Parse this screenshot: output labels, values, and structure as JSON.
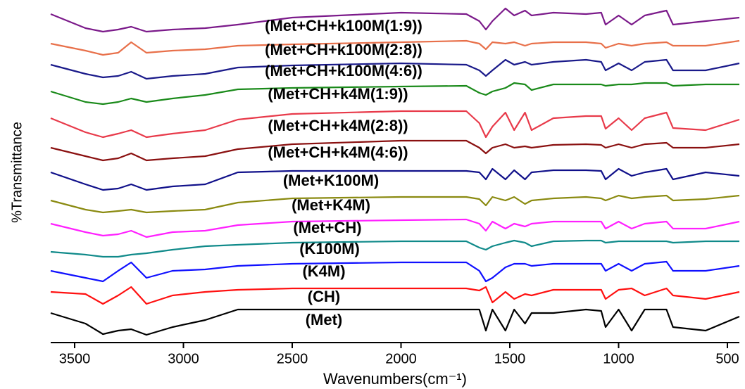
{
  "chart_data": {
    "type": "line",
    "x_label": "Wavenumbers(cm⁻¹)",
    "y_label": "%Transmittance",
    "xlim": [
      3610,
      445
    ],
    "ylim": [
      0,
      97.4
    ],
    "xticks": [
      3500,
      3000,
      2500,
      2000,
      1500,
      1000,
      500
    ],
    "x": [
      3610,
      3450,
      3370,
      3300,
      3240,
      3170,
      3050,
      2900,
      2750,
      2500,
      2000,
      1700,
      1640,
      1610,
      1580,
      1520,
      1480,
      1430,
      1400,
      1300,
      1150,
      1080,
      1060,
      1000,
      940,
      880,
      780,
      750,
      600,
      445
    ],
    "series": [
      {
        "name": "(Met+CH+k100M(1:9))",
        "color": "#7b1a8a",
        "values": [
          93.4,
          89.4,
          88.4,
          89,
          89.8,
          88.4,
          89,
          89.4,
          90.4,
          92.4,
          93.8,
          93.4,
          91.4,
          89,
          91.4,
          95,
          93,
          94.4,
          93,
          93.8,
          93.4,
          93.8,
          90.4,
          93,
          90.4,
          93,
          94.4,
          90.4,
          91.4,
          92.4
        ]
      },
      {
        "name": "(Met+CH+k100M(2:8))",
        "color": "#e8704a",
        "values": [
          85,
          83,
          81.8,
          82.4,
          85.4,
          82.4,
          83,
          83.4,
          84.4,
          84.8,
          85.4,
          85.8,
          85,
          83.4,
          85.4,
          85,
          85.4,
          84.4,
          85,
          85.4,
          85.4,
          85,
          83.8,
          85,
          84.4,
          85,
          85.4,
          84.4,
          84.4,
          85.8
        ]
      },
      {
        "name": "(Met+CH+k100M(4:6))",
        "color": "#1a1a8a",
        "values": [
          79,
          76.4,
          75.4,
          75.8,
          77,
          75,
          75.8,
          76.4,
          78.2,
          78.8,
          79.4,
          79,
          77.4,
          75.8,
          77.4,
          80.4,
          79,
          79.8,
          79,
          79.8,
          80.4,
          79.8,
          77.4,
          79.4,
          77.4,
          79.8,
          80.4,
          77.4,
          77.4,
          79.4
        ]
      },
      {
        "name": "(Met+CH+k4M(1:9))",
        "color": "#1a8a1a",
        "values": [
          71.4,
          68.4,
          67.8,
          68.4,
          69.4,
          68.4,
          69.4,
          70.4,
          72,
          72.4,
          72.8,
          73,
          71,
          70.4,
          71.4,
          72.4,
          73.8,
          73.4,
          71.8,
          73.4,
          73.4,
          73.4,
          73,
          73.4,
          73.4,
          73.8,
          73.8,
          73,
          73.4,
          73.4
        ]
      },
      {
        "name": "(Met+CH+k4M(2:8))",
        "color": "#e83a4a",
        "values": [
          63.8,
          59.8,
          58.4,
          59.4,
          60.4,
          58.4,
          59.4,
          60.4,
          63.4,
          65,
          65.8,
          65.8,
          62.4,
          58.4,
          61.4,
          65.4,
          60.4,
          65.4,
          60.4,
          63.8,
          64.4,
          64.4,
          60.8,
          63.8,
          60.4,
          63.8,
          65.4,
          61,
          60.4,
          63.4
        ]
      },
      {
        "name": "(Met+CH+k4M(4:6))",
        "color": "#8a1010",
        "values": [
          55.4,
          53,
          51.8,
          52.4,
          53.8,
          51.8,
          52.4,
          53,
          55,
          56.4,
          57.4,
          57.4,
          55.4,
          53.8,
          55.4,
          56.4,
          55.4,
          55.8,
          55.4,
          56.2,
          56.4,
          56.2,
          55.4,
          56.4,
          55.4,
          56.4,
          56.8,
          55.4,
          55.4,
          56.4
        ]
      },
      {
        "name": "(Met+K100M)",
        "color": "#10108a",
        "values": [
          48.4,
          45,
          43.4,
          43.8,
          45,
          43.4,
          44.4,
          45,
          48.4,
          48.8,
          48.8,
          48.8,
          48.4,
          46.4,
          49.4,
          46.4,
          49,
          46.4,
          48.4,
          49,
          49,
          48.8,
          46.4,
          49.4,
          47.4,
          48.4,
          49.4,
          46.4,
          48.4,
          47.4
        ]
      },
      {
        "name": "(Met+K4M)",
        "color": "#8a8a10",
        "values": [
          40.4,
          37.8,
          37,
          37.4,
          37.8,
          37,
          37.4,
          37.8,
          39.8,
          41,
          41.4,
          41.4,
          40.8,
          39,
          41.4,
          40.4,
          41.4,
          39.4,
          40.4,
          41,
          41.4,
          41,
          40.4,
          41.8,
          41,
          41.4,
          41.8,
          40.4,
          40.8,
          41.8
        ]
      },
      {
        "name": "(Met+CH)",
        "color": "#ff20ff",
        "values": [
          33.8,
          31.4,
          30.4,
          30.8,
          31.8,
          30,
          31.4,
          31.8,
          33.4,
          34.4,
          34.8,
          35,
          33.8,
          31.8,
          34.4,
          32.4,
          33.8,
          33,
          33.8,
          34.4,
          34.4,
          34.4,
          32.4,
          34.4,
          32.4,
          33.8,
          34.4,
          32.4,
          32.4,
          34.4
        ]
      },
      {
        "name": "(K100M)",
        "color": "#108a8a",
        "values": [
          25.8,
          25,
          24.4,
          24.4,
          25,
          25.4,
          26.4,
          27.4,
          27.8,
          28.4,
          28.8,
          28.8,
          27,
          26.4,
          27.4,
          28.4,
          29,
          28.4,
          27.4,
          28.8,
          29,
          29,
          28.4,
          28.8,
          28.8,
          28.8,
          28.8,
          28.4,
          28.8,
          28.8
        ]
      },
      {
        "name": "(K4M)",
        "color": "#1010ff",
        "values": [
          20.4,
          18.4,
          17.4,
          20.4,
          22.8,
          18.4,
          20.4,
          20.8,
          21.8,
          22.4,
          22.8,
          22.8,
          20.4,
          17.4,
          18.4,
          21.4,
          22.4,
          22.4,
          21.8,
          22.4,
          22.4,
          22.4,
          20.4,
          22.4,
          20.4,
          22.4,
          23,
          20.4,
          20.4,
          21.8
        ]
      },
      {
        "name": "(CH)",
        "color": "#ff1010",
        "values": [
          14.4,
          13.8,
          11,
          13.4,
          15.8,
          11,
          13.4,
          14.4,
          15,
          15.4,
          15.4,
          15.4,
          14.8,
          15.8,
          11.4,
          14.4,
          12.4,
          13.8,
          13.4,
          15,
          15,
          15,
          12.4,
          15,
          15.4,
          13.4,
          15.4,
          13.4,
          12.4,
          14.4
        ]
      },
      {
        "name": "(Met)",
        "color": "#000000",
        "values": [
          8.4,
          5.4,
          2.4,
          3.4,
          3.8,
          2.2,
          4.4,
          6.4,
          9.4,
          9.4,
          9.4,
          9.4,
          9.4,
          3.4,
          9.4,
          3.4,
          9.4,
          5.4,
          8.4,
          8.4,
          9.4,
          9,
          4.4,
          9.4,
          3.4,
          9.4,
          9.4,
          4.4,
          3.4,
          7.4
        ]
      }
    ]
  }
}
